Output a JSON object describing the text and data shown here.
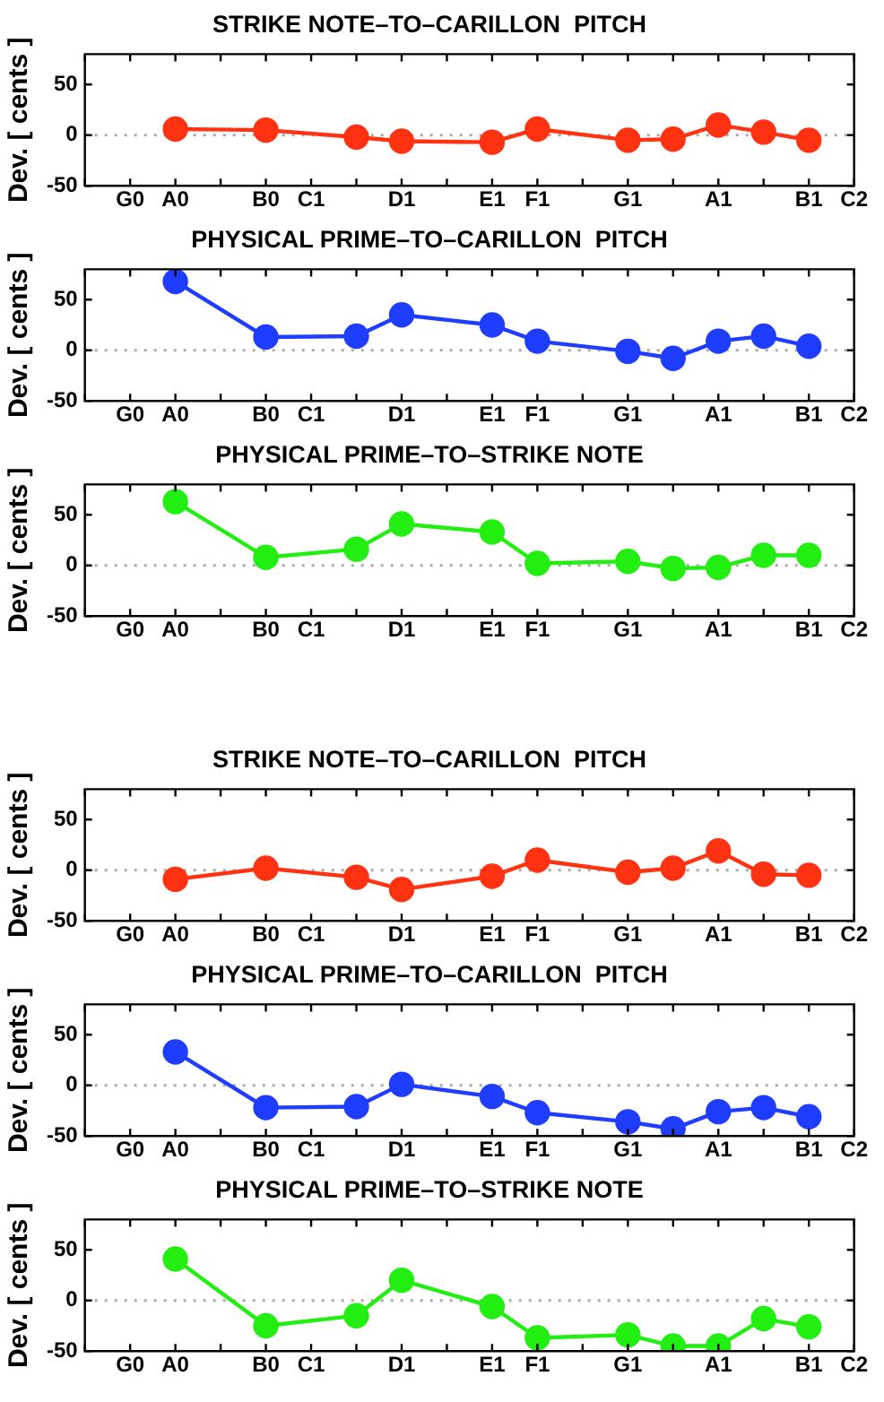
{
  "chart_data": [
    {
      "type": "line",
      "title": "STRIKE NOTE–TO–CARILLON  PITCH",
      "ylabel": "Dev. [ cents ]",
      "categories": [
        null,
        "G0",
        "A0",
        null,
        "B0",
        "C1",
        null,
        "D1",
        null,
        "E1",
        "F1",
        null,
        "G1",
        null,
        "A1",
        null,
        "B1",
        "C2"
      ],
      "ylim": [
        -50,
        80
      ],
      "yticks": [
        -50,
        0,
        50
      ],
      "marker": "circle",
      "line_style": "solid",
      "ref_lines": [
        {
          "axis": "y",
          "value": 0,
          "color": "#aaaaaa",
          "line_style": "dotted"
        }
      ],
      "series": [
        {
          "color": "#ff3311",
          "values": [
            null,
            null,
            6,
            null,
            5,
            null,
            -2,
            -6,
            null,
            -7,
            6,
            null,
            -5,
            -4,
            10,
            3,
            -5,
            null
          ]
        }
      ]
    },
    {
      "type": "line",
      "title": "PHYSICAL PRIME–TO–CARILLON  PITCH",
      "ylabel": "Dev. [ cents ]",
      "categories": [
        null,
        "G0",
        "A0",
        null,
        "B0",
        "C1",
        null,
        "D1",
        null,
        "E1",
        "F1",
        null,
        "G1",
        null,
        "A1",
        null,
        "B1",
        "C2"
      ],
      "ylim": [
        -50,
        80
      ],
      "yticks": [
        -50,
        0,
        50
      ],
      "marker": "circle",
      "line_style": "solid",
      "ref_lines": [
        {
          "axis": "y",
          "value": 0,
          "color": "#aaaaaa",
          "line_style": "dotted"
        }
      ],
      "series": [
        {
          "color": "#1f3dff",
          "values": [
            null,
            null,
            68,
            null,
            13,
            null,
            14,
            35,
            null,
            25,
            9,
            null,
            -1,
            -8,
            9,
            14,
            4,
            null
          ]
        }
      ]
    },
    {
      "type": "line",
      "title": "PHYSICAL PRIME–TO–STRIKE NOTE",
      "ylabel": "Dev. [ cents ]",
      "categories": [
        null,
        "G0",
        "A0",
        null,
        "B0",
        "C1",
        null,
        "D1",
        null,
        "E1",
        "F1",
        null,
        "G1",
        null,
        "A1",
        null,
        "B1",
        "C2"
      ],
      "ylim": [
        -50,
        80
      ],
      "yticks": [
        -50,
        0,
        50
      ],
      "marker": "circle",
      "line_style": "solid",
      "ref_lines": [
        {
          "axis": "y",
          "value": 0,
          "color": "#aaaaaa",
          "line_style": "dotted"
        }
      ],
      "series": [
        {
          "color": "#22ee11",
          "values": [
            null,
            null,
            63,
            null,
            8,
            null,
            16,
            41,
            null,
            33,
            2,
            null,
            4,
            -3,
            -2,
            10,
            10,
            null
          ]
        }
      ]
    },
    {
      "type": "line",
      "title": "STRIKE NOTE–TO–CARILLON  PITCH",
      "ylabel": "Dev. [ cents ]",
      "categories": [
        null,
        "G0",
        "A0",
        null,
        "B0",
        "C1",
        null,
        "D1",
        null,
        "E1",
        "F1",
        null,
        "G1",
        null,
        "A1",
        null,
        "B1",
        "C2"
      ],
      "ylim": [
        -50,
        80
      ],
      "yticks": [
        -50,
        0,
        50
      ],
      "marker": "circle",
      "line_style": "solid",
      "ref_lines": [
        {
          "axis": "y",
          "value": 0,
          "color": "#aaaaaa",
          "line_style": "dotted"
        }
      ],
      "series": [
        {
          "color": "#ff3311",
          "values": [
            null,
            null,
            -9,
            null,
            2,
            null,
            -7,
            -19,
            null,
            -6,
            10,
            null,
            -2,
            2,
            19,
            -4,
            -5,
            null
          ]
        }
      ]
    },
    {
      "type": "line",
      "title": "PHYSICAL PRIME–TO–CARILLON  PITCH",
      "ylabel": "Dev. [ cents ]",
      "categories": [
        null,
        "G0",
        "A0",
        null,
        "B0",
        "C1",
        null,
        "D1",
        null,
        "E1",
        "F1",
        null,
        "G1",
        null,
        "A1",
        null,
        "B1",
        "C2"
      ],
      "ylim": [
        -50,
        80
      ],
      "yticks": [
        -50,
        0,
        50
      ],
      "marker": "circle",
      "line_style": "solid",
      "ref_lines": [
        {
          "axis": "y",
          "value": 0,
          "color": "#aaaaaa",
          "line_style": "dotted"
        }
      ],
      "series": [
        {
          "color": "#1f3dff",
          "values": [
            null,
            null,
            33,
            null,
            -22,
            null,
            -21,
            1,
            null,
            -11,
            -27,
            null,
            -36,
            -43,
            -26,
            -22,
            -31,
            null
          ]
        }
      ]
    },
    {
      "type": "line",
      "title": "PHYSICAL PRIME–TO–STRIKE NOTE",
      "ylabel": "Dev. [ cents ]",
      "categories": [
        null,
        "G0",
        "A0",
        null,
        "B0",
        "C1",
        null,
        "D1",
        null,
        "E1",
        "F1",
        null,
        "G1",
        null,
        "A1",
        null,
        "B1",
        "C2"
      ],
      "ylim": [
        -50,
        80
      ],
      "yticks": [
        -50,
        0,
        50
      ],
      "marker": "circle",
      "line_style": "solid",
      "ref_lines": [
        {
          "axis": "y",
          "value": 0,
          "color": "#aaaaaa",
          "line_style": "dotted"
        }
      ],
      "series": [
        {
          "color": "#22ee11",
          "values": [
            null,
            null,
            41,
            null,
            -25,
            null,
            -15,
            20,
            null,
            -6,
            -37,
            null,
            -34,
            -45,
            -45,
            -18,
            -26,
            null
          ]
        }
      ]
    }
  ]
}
